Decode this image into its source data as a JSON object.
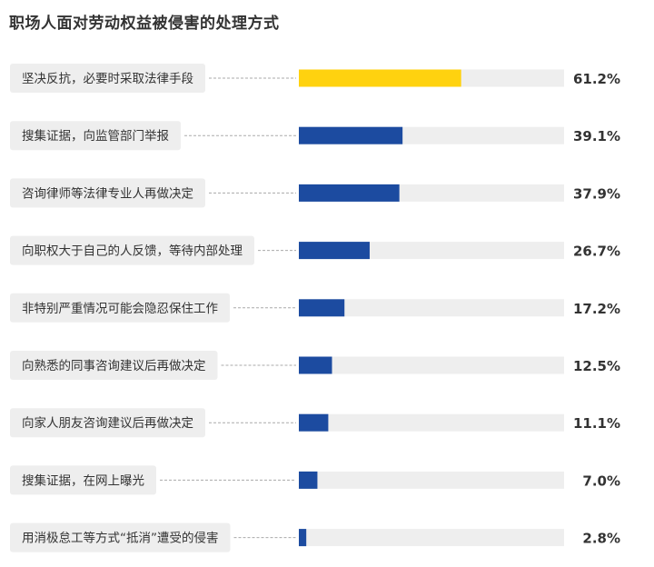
{
  "chart_data": {
    "type": "bar",
    "orientation": "horizontal",
    "title": "职场人面对劳动权益被侵害的处理方式",
    "categories": [
      "坚决反抗，必要时采取法律手段",
      "搜集证据，向监管部门举报",
      "咨询律师等法律专业人再做决定",
      "向职权大于自己的人反馈，等待内部处理",
      "非特别严重情况可能会隐忍保住工作",
      "向熟悉的同事咨询建议后再做决定",
      "向家人朋友咨询建议后再做决定",
      "搜集证据，在网上曝光",
      "用消极怠工等方式“抵消”遭受的侵害"
    ],
    "values": [
      61.2,
      39.1,
      37.9,
      26.7,
      17.2,
      12.5,
      11.1,
      7.0,
      2.8
    ],
    "value_labels": [
      "61.2%",
      "39.1%",
      "37.9%",
      "26.7%",
      "17.2%",
      "12.5%",
      "11.1%",
      "7.0%",
      "2.8%"
    ],
    "xlim": [
      0,
      100
    ],
    "grid": false,
    "legend": "none",
    "colors": {
      "highlight": "#FFD20F",
      "bar": "#1C4BA0",
      "track": "#EEEEEE",
      "label_bg": "#EEEEEE",
      "leader": "#AAAAAA",
      "text": "#333333"
    }
  }
}
